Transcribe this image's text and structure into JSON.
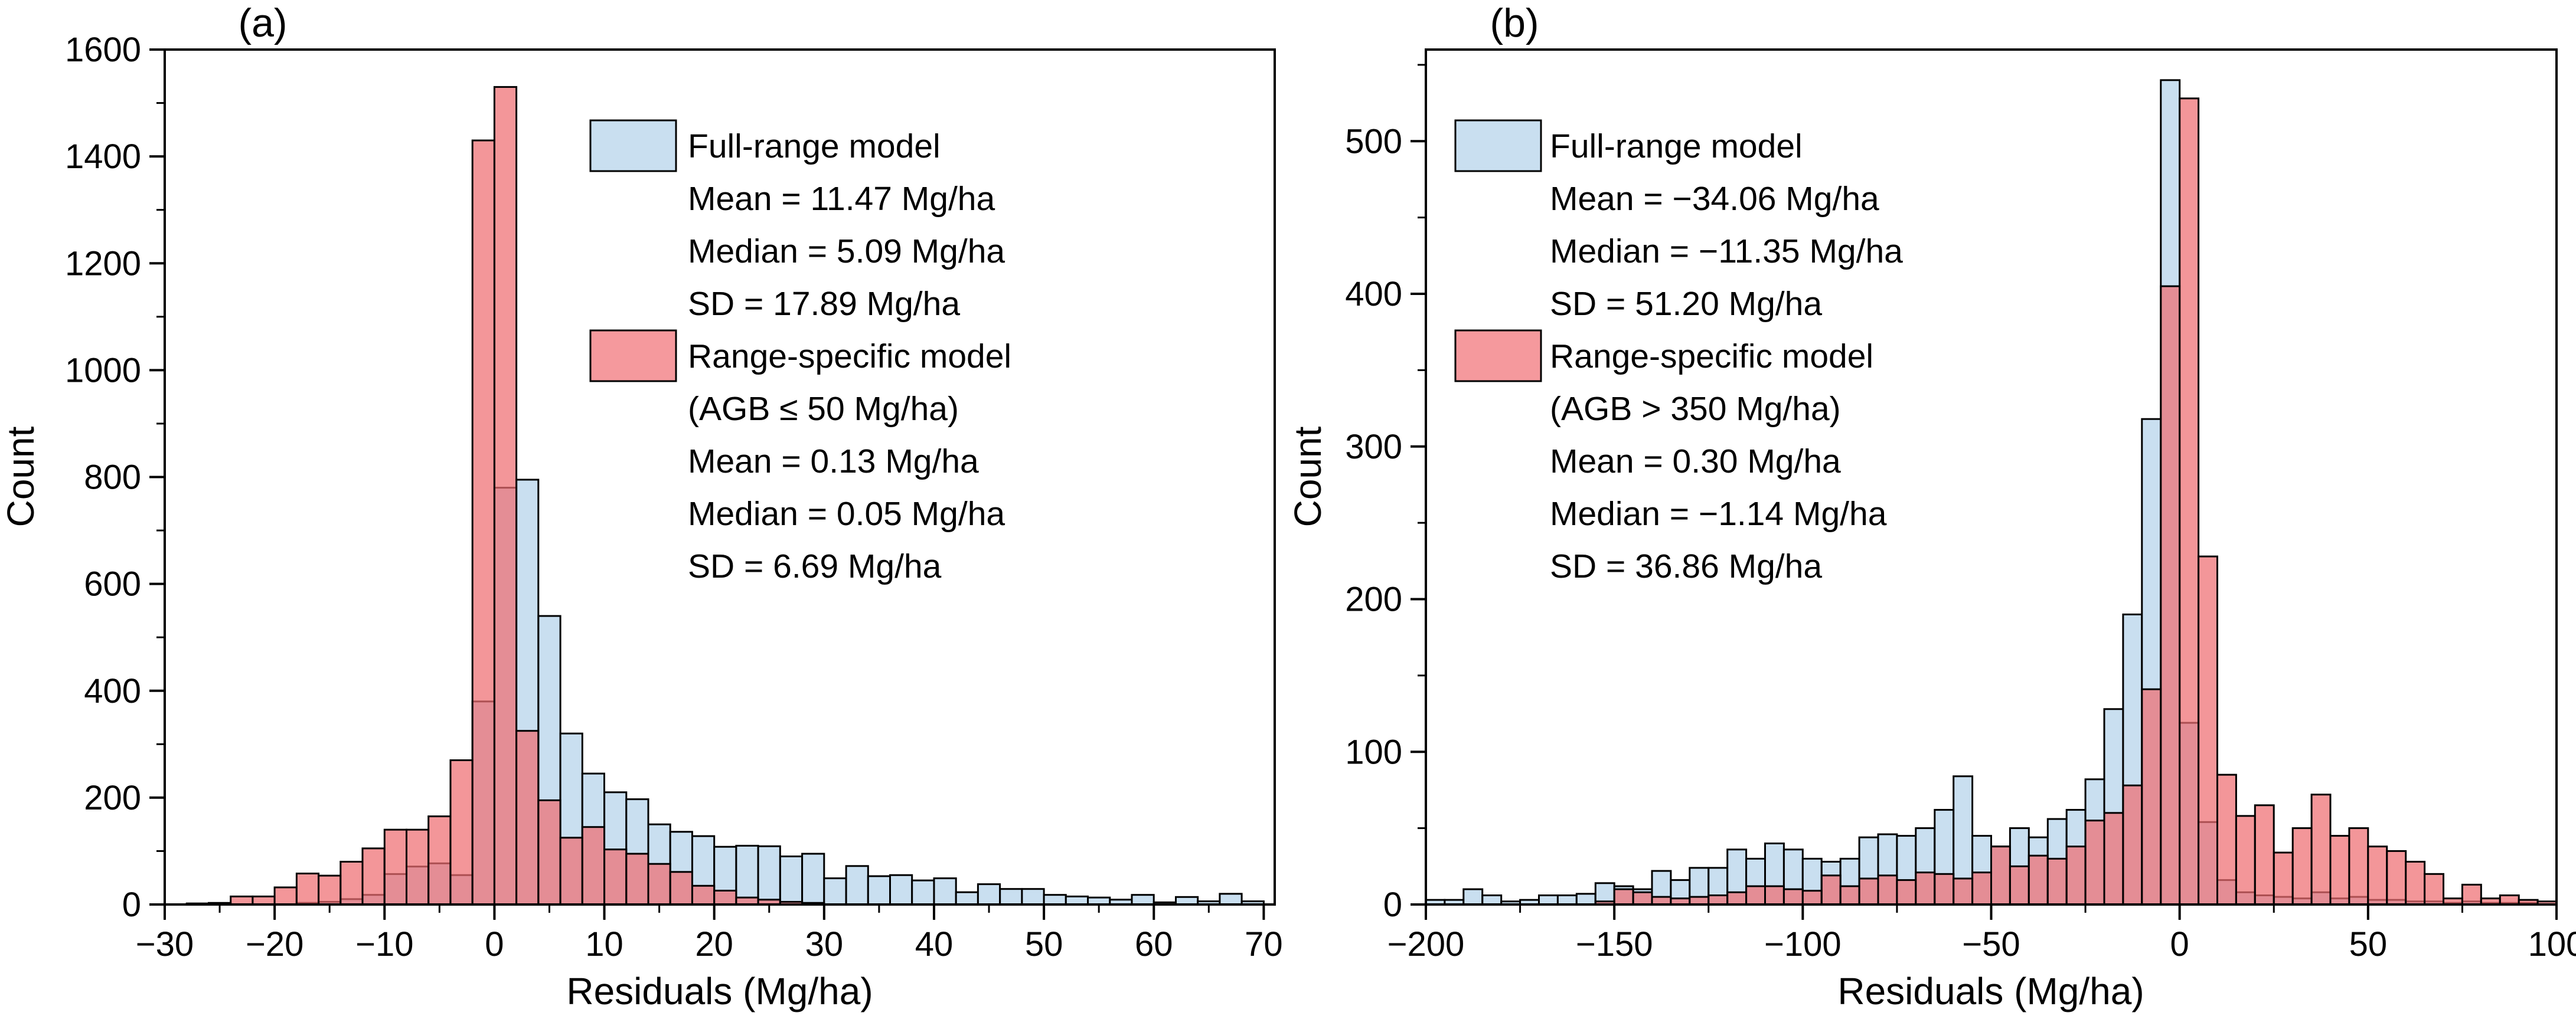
{
  "figure": {
    "background": "#ffffff",
    "axis_color": "#000000",
    "bar_outline_color": "#000000"
  },
  "chart_data": [
    {
      "type": "bar",
      "subtype": "overlaid-histogram",
      "id": "a",
      "tag": "(a)",
      "xlabel": "Residuals (Mg/ha)",
      "ylabel": "Count",
      "xlim": [
        -30,
        71
      ],
      "ylim": [
        0,
        1600
      ],
      "grid": false,
      "legend_position": "top-center-inside",
      "xticks": [
        -30,
        -20,
        -10,
        0,
        10,
        20,
        30,
        40,
        50,
        60,
        70
      ],
      "xtick_labels": [
        "−30",
        "−20",
        "−10",
        "0",
        "10",
        "20",
        "30",
        "40",
        "50",
        "60",
        "70"
      ],
      "yticks": [
        0,
        200,
        400,
        600,
        800,
        1000,
        1200,
        1400,
        1600
      ],
      "ytick_labels": [
        "0",
        "200",
        "400",
        "600",
        "800",
        "1000",
        "1200",
        "1400",
        "1600"
      ],
      "x_minor_step": 5,
      "y_minor_step": 100,
      "bin_start": -30,
      "bin_width": 2,
      "series": [
        {
          "name": "Full-range model",
          "fill": "#C9DFF0",
          "swatch": "#C9DFF0",
          "values": [
            0,
            0,
            0,
            0,
            0,
            0,
            3,
            5,
            10,
            18,
            57,
            71,
            77,
            55,
            380,
            780,
            795,
            540,
            320,
            245,
            210,
            197,
            150,
            136,
            128,
            108,
            110,
            109,
            90,
            95,
            49,
            72,
            53,
            55,
            45,
            49,
            23,
            38,
            29,
            29,
            18,
            15,
            13,
            9,
            18,
            4,
            14,
            6,
            20,
            6
          ]
        },
        {
          "name": "Range-specific model",
          "fill": "rgba(238,109,114,0.72)",
          "swatch": "#F5999D",
          "values": [
            0,
            2,
            3,
            15,
            15,
            32,
            58,
            54,
            80,
            105,
            140,
            140,
            165,
            270,
            1430,
            1530,
            325,
            195,
            125,
            145,
            103,
            95,
            76,
            61,
            35,
            26,
            13,
            9,
            5,
            3,
            0,
            0,
            0,
            0,
            0,
            0,
            0,
            0,
            0,
            0,
            0,
            0,
            0,
            0,
            0,
            0,
            0,
            0,
            0,
            0
          ]
        }
      ],
      "legend_lines": [
        "Full-range model",
        "Mean = 11.47 Mg/ha",
        "Median = 5.09 Mg/ha",
        "SD = 17.89 Mg/ha",
        "Range-specific model",
        "(AGB ≤ 50 Mg/ha)",
        "Mean = 0.13 Mg/ha",
        "Median = 0.05 Mg/ha",
        "SD = 6.69 Mg/ha"
      ]
    },
    {
      "type": "bar",
      "subtype": "overlaid-histogram",
      "id": "b",
      "tag": "(b)",
      "xlabel": "Residuals (Mg/ha)",
      "ylabel": "Count",
      "xlim": [
        -200,
        100
      ],
      "ylim": [
        0,
        560
      ],
      "grid": false,
      "legend_position": "top-left-inside",
      "xticks": [
        -200,
        -150,
        -100,
        -50,
        0,
        50,
        100
      ],
      "xtick_labels": [
        "−200",
        "−150",
        "−100",
        "−50",
        "0",
        "50",
        "100"
      ],
      "yticks": [
        0,
        100,
        200,
        300,
        400,
        500
      ],
      "ytick_labels": [
        "0",
        "100",
        "200",
        "300",
        "400",
        "500"
      ],
      "x_minor_step": 25,
      "y_minor_step": 50,
      "bin_start": -200,
      "bin_width": 5,
      "series": [
        {
          "name": "Full-range model",
          "fill": "#C9DFF0",
          "swatch": "#C9DFF0",
          "values": [
            3,
            3,
            10,
            6,
            2,
            3,
            6,
            6,
            7,
            14,
            12,
            10,
            22,
            16,
            24,
            24,
            36,
            30,
            40,
            36,
            30,
            28,
            30,
            44,
            46,
            45,
            50,
            62,
            84,
            45,
            38,
            50,
            44,
            56,
            62,
            82,
            128,
            190,
            318,
            540,
            119,
            54,
            16,
            8,
            6,
            5,
            4,
            8,
            4,
            5,
            3,
            3,
            2,
            2,
            1,
            2,
            1,
            1,
            1,
            0
          ]
        },
        {
          "name": "Range-specific model",
          "fill": "rgba(238,109,114,0.72)",
          "swatch": "#F5999D",
          "values": [
            0,
            0,
            0,
            0,
            0,
            0,
            0,
            0,
            0,
            2,
            10,
            8,
            5,
            4,
            5,
            6,
            8,
            12,
            12,
            10,
            9,
            19,
            12,
            17,
            19,
            16,
            21,
            20,
            17,
            21,
            38,
            25,
            32,
            30,
            38,
            55,
            60,
            78,
            141,
            405,
            528,
            228,
            85,
            58,
            65,
            34,
            50,
            72,
            45,
            50,
            38,
            35,
            28,
            20,
            4,
            13,
            4,
            6,
            3,
            2
          ]
        }
      ],
      "legend_lines": [
        "Full-range model",
        "Mean = −34.06 Mg/ha",
        "Median = −11.35 Mg/ha",
        "SD = 51.20 Mg/ha",
        "Range-specific model",
        "(AGB > 350 Mg/ha)",
        "Mean = 0.30 Mg/ha",
        "Median = −1.14 Mg/ha",
        "SD = 36.86 Mg/ha"
      ]
    }
  ]
}
